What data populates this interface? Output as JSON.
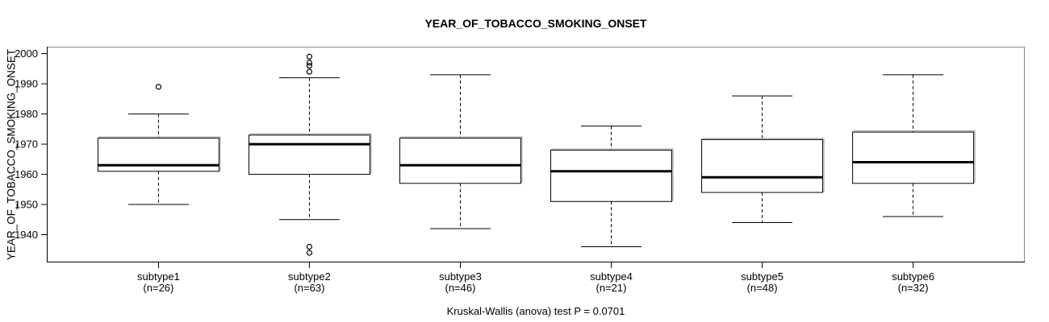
{
  "chart_data": {
    "type": "boxplot",
    "title": "YEAR_OF_TOBACCO_SMOKING_ONSET",
    "ylabel": "YEAR_OF_TOBACCO_SMOKING_ONSET",
    "xlabel": "",
    "annotation": "Kruskal-Wallis (anova) test P = 0.0701",
    "ylim": [
      1930.8,
      2002.3
    ],
    "xlim": [
      0.26,
      6.74
    ],
    "yticks": [
      1940,
      1950,
      1960,
      1970,
      1980,
      1990,
      2000
    ],
    "grid": false,
    "legend": "none",
    "categories": [
      {
        "label": "subtype1",
        "sublabel": "(n=26)"
      },
      {
        "label": "subtype2",
        "sublabel": "(n=63)"
      },
      {
        "label": "subtype3",
        "sublabel": "(n=46)"
      },
      {
        "label": "subtype4",
        "sublabel": "(n=21)"
      },
      {
        "label": "subtype5",
        "sublabel": "(n=48)"
      },
      {
        "label": "subtype6",
        "sublabel": "(n=32)"
      }
    ],
    "series": [
      {
        "name": "subtype1",
        "n": 26,
        "low": 1950,
        "q1": 1961,
        "median": 1963,
        "q3": 1972,
        "high": 1980,
        "outliers": [
          1989
        ]
      },
      {
        "name": "subtype2",
        "n": 63,
        "low": 1945,
        "q1": 1960,
        "median": 1970,
        "q3": 1973,
        "high": 1992,
        "outliers": [
          1999,
          1997,
          1996,
          1994,
          1936,
          1934
        ]
      },
      {
        "name": "subtype3",
        "n": 46,
        "low": 1942,
        "q1": 1957,
        "median": 1963,
        "q3": 1972,
        "high": 1993,
        "outliers": []
      },
      {
        "name": "subtype4",
        "n": 21,
        "low": 1936,
        "q1": 1951,
        "median": 1961,
        "q3": 1968,
        "high": 1976,
        "outliers": []
      },
      {
        "name": "subtype5",
        "n": 48,
        "low": 1944,
        "q1": 1954,
        "median": 1959,
        "q3": 1971.5,
        "high": 1986,
        "outliers": []
      },
      {
        "name": "subtype6",
        "n": 32,
        "low": 1946,
        "q1": 1957,
        "median": 1964,
        "q3": 1974,
        "high": 1993,
        "outliers": []
      }
    ],
    "colors": {
      "line": "#000000",
      "box_fill": "#ffffff",
      "box_shadow": "#999999",
      "plot_border": "#888888",
      "text": "#000000"
    }
  }
}
